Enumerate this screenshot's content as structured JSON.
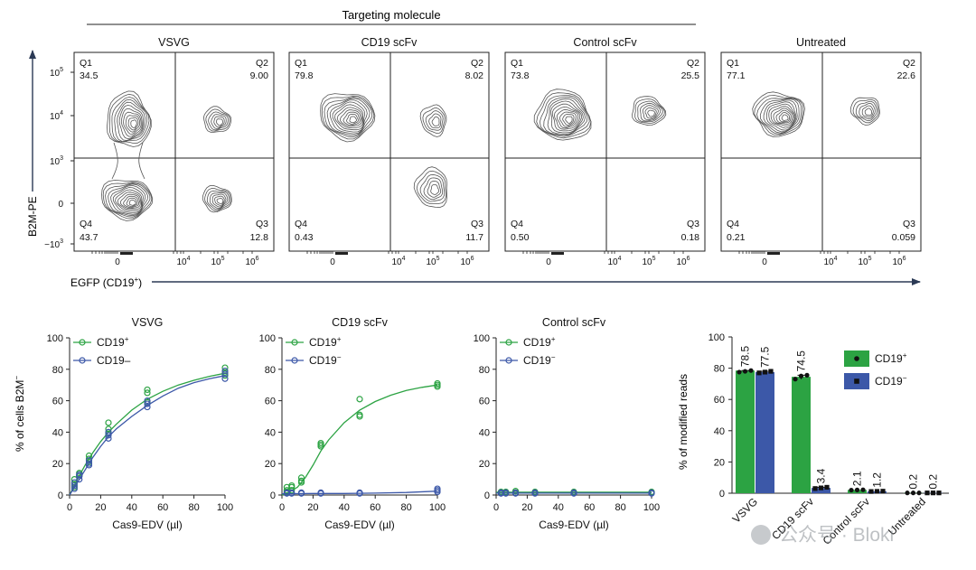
{
  "colors": {
    "green": "#2ca343",
    "blue": "#3c58a8",
    "axis": "#222222",
    "contour": "#555555",
    "arrow": "#2b3a55"
  },
  "chart_data": [
    {
      "type": "contour",
      "header": "Targeting molecule",
      "xlabel": "EGFP (CD19",
      "xlabel_sup": "+",
      "xlabel_close": ")",
      "ylabel": "B2M-PE",
      "x_ticks": [
        "0",
        "10",
        "10",
        "10"
      ],
      "x_tick_exps": [
        "",
        "4",
        "5",
        "6"
      ],
      "y_ticks": [
        "10",
        "10",
        "10",
        "0",
        "−10"
      ],
      "y_tick_exps": [
        "5",
        "4",
        "3",
        "",
        "3"
      ],
      "panels": [
        {
          "title": "VSVG",
          "q1": "34.5",
          "q2": "9.00",
          "q3": "12.8",
          "q4": "43.7"
        },
        {
          "title": "CD19 scFv",
          "q1": "79.8",
          "q2": "8.02",
          "q3": "11.7",
          "q4": "0.43"
        },
        {
          "title": "Control scFv",
          "q1": "73.8",
          "q2": "25.5",
          "q3": "0.18",
          "q4": "0.50"
        },
        {
          "title": "Untreated",
          "q1": "77.1",
          "q2": "22.6",
          "q3": "0.059",
          "q4": "0.21"
        }
      ],
      "quadrant_labels": [
        "Q1",
        "Q2",
        "Q3",
        "Q4"
      ]
    },
    {
      "type": "scatter-line",
      "ylabel": "% of cells B2M",
      "ylabel_sup": "−",
      "xlabel": "Cas9-EDV (µl)",
      "x_ticks": [
        0,
        20,
        40,
        60,
        80,
        100
      ],
      "y_ticks": [
        0,
        20,
        40,
        60,
        80,
        100
      ],
      "xlim": [
        0,
        100
      ],
      "ylim": [
        0,
        100
      ],
      "panels": [
        {
          "title": "VSVG",
          "legend": [
            {
              "label": "CD19",
              "sup": "+",
              "color": "green"
            },
            {
              "label": "CD19–",
              "sup": "",
              "color": "blue"
            }
          ],
          "series": [
            {
              "name": "CD19+",
              "color": "green",
              "points": [
                [
                  3.125,
                  5
                ],
                [
                  3.125,
                  7
                ],
                [
                  3.125,
                  10
                ],
                [
                  6.25,
                  12
                ],
                [
                  6.25,
                  13
                ],
                [
                  6.25,
                  14
                ],
                [
                  12.5,
                  21
                ],
                [
                  12.5,
                  23
                ],
                [
                  12.5,
                  25
                ],
                [
                  25,
                  39
                ],
                [
                  25,
                  42
                ],
                [
                  25,
                  46
                ],
                [
                  50,
                  59
                ],
                [
                  50,
                  65
                ],
                [
                  50,
                  67
                ],
                [
                  100,
                  76
                ],
                [
                  100,
                  78
                ],
                [
                  100,
                  81
                ]
              ],
              "curve": [
                [
                  0,
                  0
                ],
                [
                  5,
                  10
                ],
                [
                  10,
                  19
                ],
                [
                  15,
                  27
                ],
                [
                  20,
                  34
                ],
                [
                  25,
                  40
                ],
                [
                  30,
                  45
                ],
                [
                  40,
                  54
                ],
                [
                  50,
                  61
                ],
                [
                  60,
                  66
                ],
                [
                  70,
                  70
                ],
                [
                  80,
                  73
                ],
                [
                  90,
                  75.5
                ],
                [
                  100,
                  77.5
                ]
              ]
            },
            {
              "name": "CD19–",
              "color": "blue",
              "points": [
                [
                  3.125,
                  4
                ],
                [
                  3.125,
                  6
                ],
                [
                  3.125,
                  8
                ],
                [
                  6.25,
                  10
                ],
                [
                  6.25,
                  12
                ],
                [
                  6.25,
                  13
                ],
                [
                  12.5,
                  19
                ],
                [
                  12.5,
                  20
                ],
                [
                  12.5,
                  22
                ],
                [
                  25,
                  36
                ],
                [
                  25,
                  38
                ],
                [
                  25,
                  40
                ],
                [
                  50,
                  56
                ],
                [
                  50,
                  58
                ],
                [
                  50,
                  60
                ],
                [
                  100,
                  74
                ],
                [
                  100,
                  77
                ],
                [
                  100,
                  79
                ]
              ],
              "curve": [
                [
                  0,
                  0
                ],
                [
                  5,
                  8
                ],
                [
                  10,
                  16
                ],
                [
                  15,
                  24
                ],
                [
                  20,
                  31
                ],
                [
                  25,
                  37
                ],
                [
                  30,
                  42
                ],
                [
                  40,
                  50
                ],
                [
                  50,
                  57
                ],
                [
                  60,
                  63
                ],
                [
                  70,
                  68
                ],
                [
                  80,
                  71.5
                ],
                [
                  90,
                  74
                ],
                [
                  100,
                  76
                ]
              ]
            }
          ]
        },
        {
          "title": "CD19 scFv",
          "legend": [
            {
              "label": "CD19",
              "sup": "+",
              "color": "green"
            },
            {
              "label": "CD19",
              "sup": "−",
              "color": "blue"
            }
          ],
          "series": [
            {
              "name": "CD19+",
              "color": "green",
              "points": [
                [
                  3.125,
                  2
                ],
                [
                  3.125,
                  3
                ],
                [
                  3.125,
                  5
                ],
                [
                  6.25,
                  3
                ],
                [
                  6.25,
                  5
                ],
                [
                  6.25,
                  6
                ],
                [
                  12.5,
                  8
                ],
                [
                  12.5,
                  9
                ],
                [
                  12.5,
                  11
                ],
                [
                  25,
                  31
                ],
                [
                  25,
                  32
                ],
                [
                  25,
                  33
                ],
                [
                  50,
                  50
                ],
                [
                  50,
                  51
                ],
                [
                  50,
                  61
                ],
                [
                  100,
                  69
                ],
                [
                  100,
                  70
                ],
                [
                  100,
                  71
                ]
              ],
              "curve": [
                [
                  0,
                  0
                ],
                [
                  5,
                  2
                ],
                [
                  10,
                  5
                ],
                [
                  15,
                  11
                ],
                [
                  20,
                  19
                ],
                [
                  25,
                  28
                ],
                [
                  30,
                  35
                ],
                [
                  40,
                  46
                ],
                [
                  50,
                  54
                ],
                [
                  60,
                  59.5
                ],
                [
                  70,
                  63.5
                ],
                [
                  80,
                  66.5
                ],
                [
                  90,
                  68.5
                ],
                [
                  100,
                  70
                ]
              ]
            },
            {
              "name": "CD19−",
              "color": "blue",
              "points": [
                [
                  3.125,
                  1
                ],
                [
                  3.125,
                  1.5
                ],
                [
                  6.25,
                  1
                ],
                [
                  6.25,
                  1.5
                ],
                [
                  12.5,
                  1
                ],
                [
                  12.5,
                  1.5
                ],
                [
                  25,
                  1
                ],
                [
                  25,
                  1.5
                ],
                [
                  50,
                  1
                ],
                [
                  50,
                  1.5
                ],
                [
                  100,
                  2
                ],
                [
                  100,
                  3
                ],
                [
                  100,
                  4
                ]
              ],
              "curve": [
                [
                  0,
                  0.8
                ],
                [
                  20,
                  1
                ],
                [
                  40,
                  1
                ],
                [
                  60,
                  1.2
                ],
                [
                  80,
                  1.6
                ],
                [
                  100,
                  2.5
                ]
              ]
            }
          ]
        },
        {
          "title": "Control scFv",
          "legend": [
            {
              "label": "CD19",
              "sup": "+",
              "color": "green"
            },
            {
              "label": "CD19",
              "sup": "−",
              "color": "blue"
            }
          ],
          "series": [
            {
              "name": "CD19+",
              "color": "green",
              "points": [
                [
                  3.125,
                  1.5
                ],
                [
                  3.125,
                  2
                ],
                [
                  6.25,
                  1.5
                ],
                [
                  6.25,
                  2
                ],
                [
                  12.5,
                  1.5
                ],
                [
                  12.5,
                  2.5
                ],
                [
                  25,
                  1.5
                ],
                [
                  25,
                  2
                ],
                [
                  50,
                  1.5
                ],
                [
                  50,
                  2
                ],
                [
                  100,
                  1.5
                ],
                [
                  100,
                  2
                ]
              ],
              "curve": [
                [
                  0,
                  1.8
                ],
                [
                  100,
                  1.8
                ]
              ]
            },
            {
              "name": "CD19−",
              "color": "blue",
              "points": [
                [
                  3.125,
                  1
                ],
                [
                  3.125,
                  1.5
                ],
                [
                  6.25,
                  1
                ],
                [
                  6.25,
                  1.5
                ],
                [
                  12.5,
                  1
                ],
                [
                  12.5,
                  1.5
                ],
                [
                  25,
                  1
                ],
                [
                  25,
                  1.5
                ],
                [
                  50,
                  1
                ],
                [
                  50,
                  1.5
                ],
                [
                  100,
                  1
                ],
                [
                  100,
                  1.5
                ]
              ],
              "curve": [
                [
                  0,
                  1.2
                ],
                [
                  100,
                  1.2
                ]
              ]
            }
          ]
        }
      ]
    },
    {
      "type": "bar",
      "ylabel": "% of modified reads",
      "y_ticks": [
        0,
        20,
        40,
        60,
        80,
        100
      ],
      "ylim": [
        0,
        100
      ],
      "categories": [
        "VSVG",
        "CD19 scFv",
        "Control scFv",
        "Untreated"
      ],
      "series": [
        {
          "name": "CD19+",
          "color": "green",
          "marker": "circle",
          "values": [
            78.5,
            74.5,
            2.1,
            0.2
          ],
          "labels": [
            "78.5",
            "74.5",
            "2.1",
            "0.2"
          ],
          "points": [
            [
              77.5,
              78,
              78.5
            ],
            [
              73,
              75,
              75.5
            ],
            [
              2,
              2.1,
              2.2
            ],
            [
              0.2,
              0.2,
              0.2
            ]
          ]
        },
        {
          "name": "CD19−",
          "color": "blue",
          "marker": "square",
          "values": [
            77.5,
            3.4,
            1.2,
            0.2
          ],
          "labels": [
            "77.5",
            "3.4",
            "1.2",
            "0.2"
          ],
          "points": [
            [
              77,
              77.5,
              78
            ],
            [
              3,
              3.4,
              3.8
            ],
            [
              1.1,
              1.2,
              1.3
            ],
            [
              0.2,
              0.2,
              0.2
            ]
          ]
        }
      ],
      "legend": [
        {
          "label": "CD19",
          "sup": "+",
          "color": "green",
          "marker": "circle"
        },
        {
          "label": "CD19",
          "sup": "−",
          "color": "blue",
          "marker": "square"
        }
      ]
    }
  ],
  "watermark": "公众号 · Bloki"
}
